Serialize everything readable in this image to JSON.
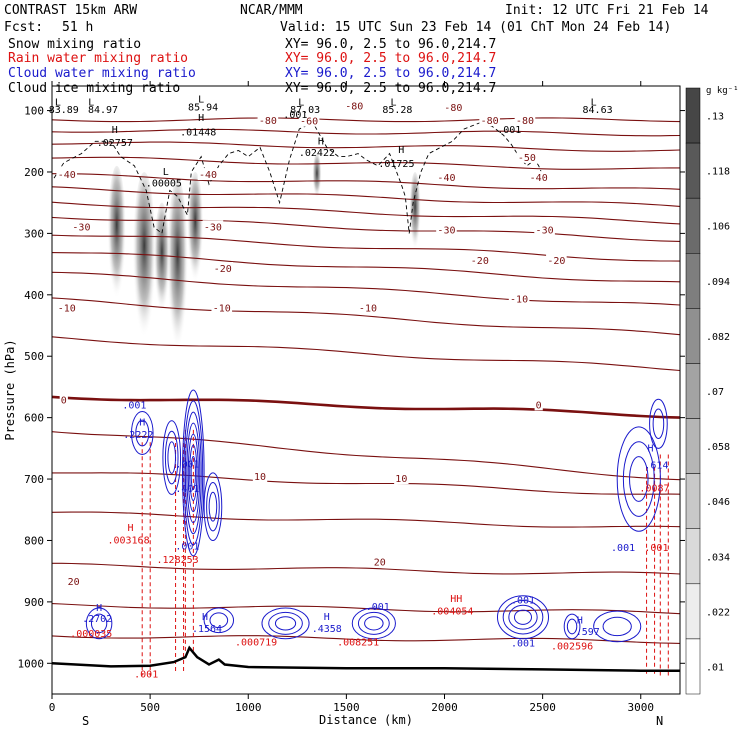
{
  "chart_data": {
    "type": "cross-section",
    "header": {
      "left_title": "CONTRAST 15km ARW",
      "center_title": "NCAR/MMM",
      "right_title": "Init: 12 UTC Fri 21 Feb 14",
      "fcst_label": "Fcst:",
      "fcst_value": "51 h",
      "valid": "Valid: 15 UTC Sun 23 Feb 14 (01 ChT Mon 24 Feb 14)"
    },
    "fields": [
      {
        "name": "Snow mixing ratio",
        "xy": "XY=  96.0,  2.5 to  96.0,214.7",
        "color": "#000000"
      },
      {
        "name": "Rain water mixing ratio",
        "xy": "XY=  96.0,  2.5 to  96.0,214.7",
        "color": "#dd1111"
      },
      {
        "name": "Cloud water mixing ratio",
        "xy": "XY=  96.0,  2.5 to  96.0,214.7",
        "color": "#1a1acc"
      },
      {
        "name": "Cloud ice mixing ratio",
        "xy": "XY=  96.0,  2.5 to  96.0,214.7",
        "color": "#000000"
      }
    ],
    "xlabel": "Distance (km)",
    "ylabel": "Pressure (hPa)",
    "xlim": [
      0,
      3200
    ],
    "ylim": [
      1050,
      60
    ],
    "xticks": [
      0,
      500,
      1000,
      1500,
      2000,
      2500,
      3000
    ],
    "xtick_labels": [
      "0",
      "500",
      "1000",
      "1500",
      "2000",
      "2500",
      "3000"
    ],
    "yticks": [
      100,
      200,
      300,
      400,
      500,
      600,
      700,
      800,
      900,
      1000
    ],
    "ytick_labels": [
      "100",
      "200",
      "300",
      "400",
      "500",
      "600",
      "700",
      "800",
      "900",
      "1000"
    ],
    "end_labels": {
      "left": "S",
      "right": "N"
    },
    "colorbar": {
      "unit": "g kg⁻¹",
      "labels": [
        ".13",
        ".118",
        ".106",
        ".094",
        ".082",
        ".07",
        ".058",
        ".046",
        ".034",
        ".022",
        ".01"
      ],
      "values": [
        0.13,
        0.118,
        0.106,
        0.094,
        0.082,
        0.07,
        0.058,
        0.046,
        0.034,
        0.022,
        0.01
      ]
    },
    "temperature_contours": [
      {
        "value": -80,
        "p0": 115,
        "slope": 0
      },
      {
        "value": -70,
        "p0": 132,
        "slope": 2
      },
      {
        "value": -60,
        "p0": 152,
        "slope": 4
      },
      {
        "value": -50,
        "p0": 177,
        "slope": 6
      },
      {
        "value": -45,
        "p0": 205,
        "slope": 8
      },
      {
        "value": -40,
        "p0": 227,
        "slope": 9
      },
      {
        "value": -35,
        "p0": 250,
        "slope": 10
      },
      {
        "value": -30,
        "p0": 272,
        "slope": 12
      },
      {
        "value": -25,
        "p0": 300,
        "slope": 14
      },
      {
        "value": -20,
        "p0": 330,
        "slope": 16
      },
      {
        "value": -15,
        "p0": 365,
        "slope": 17
      },
      {
        "value": -10,
        "p0": 408,
        "slope": 18
      },
      {
        "value": -5,
        "p0": 470,
        "slope": 16
      },
      {
        "value": 0,
        "p0": 565,
        "slope": 10
      },
      {
        "value": 5,
        "p0": 620,
        "slope": 25
      },
      {
        "value": 10,
        "p0": 688,
        "slope": 12
      },
      {
        "value": 15,
        "p0": 755,
        "slope": 8
      },
      {
        "value": 20,
        "p0": 840,
        "slope": 5
      },
      {
        "value": 25,
        "p0": 905,
        "slope": 4
      },
      {
        "value": 30,
        "p0": 955,
        "slope": 3
      }
    ],
    "contour_labels": [
      {
        "text": "-80",
        "x": 1540,
        "p": 93
      },
      {
        "text": "-80",
        "x": 2045,
        "p": 96
      },
      {
        "text": "-80",
        "x": 1100,
        "p": 117
      },
      {
        "text": "-80",
        "x": 2230,
        "p": 117
      },
      {
        "text": "-80",
        "x": 2410,
        "p": 117
      },
      {
        "text": "-60",
        "x": 1310,
        "p": 118
      },
      {
        "text": "-50",
        "x": 2420,
        "p": 177
      },
      {
        "text": "-40",
        "x": 75,
        "p": 205
      },
      {
        "text": "-40",
        "x": 795,
        "p": 205
      },
      {
        "text": "-40",
        "x": 2010,
        "p": 210
      },
      {
        "text": "-40",
        "x": 2480,
        "p": 210
      },
      {
        "text": "-30",
        "x": 150,
        "p": 290
      },
      {
        "text": "-30",
        "x": 820,
        "p": 290
      },
      {
        "text": "-30",
        "x": 2010,
        "p": 295
      },
      {
        "text": "-30",
        "x": 2510,
        "p": 295
      },
      {
        "text": "-20",
        "x": 870,
        "p": 358
      },
      {
        "text": "-20",
        "x": 2180,
        "p": 345
      },
      {
        "text": "-20",
        "x": 2570,
        "p": 345
      },
      {
        "text": "-10",
        "x": 75,
        "p": 422
      },
      {
        "text": "-10",
        "x": 865,
        "p": 422
      },
      {
        "text": "-10",
        "x": 1610,
        "p": 422
      },
      {
        "text": "-10",
        "x": 2380,
        "p": 408
      },
      {
        "text": "0",
        "x": 60,
        "p": 572
      },
      {
        "text": "0",
        "x": 2480,
        "p": 580
      },
      {
        "text": "10",
        "x": 1060,
        "p": 697
      },
      {
        "text": "10",
        "x": 1780,
        "p": 700
      },
      {
        "text": "20",
        "x": 110,
        "p": 868
      },
      {
        "text": "20",
        "x": 1670,
        "p": 836
      }
    ],
    "extrema_labels": [
      {
        "text": "L",
        "x": 30,
        "p": 87
      },
      {
        "text": "83.89",
        "x": 60,
        "p": 99
      },
      {
        "text": "L",
        "x": 200,
        "p": 87
      },
      {
        "text": "84.97",
        "x": 260,
        "p": 99
      },
      {
        "text": "L",
        "x": 760,
        "p": 82
      },
      {
        "text": "85.94",
        "x": 770,
        "p": 95
      },
      {
        "text": "L",
        "x": 1270,
        "p": 87
      },
      {
        "text": "87.03",
        "x": 1290,
        "p": 99
      },
      {
        "text": "L",
        "x": 1740,
        "p": 87
      },
      {
        "text": "85.28",
        "x": 1760,
        "p": 99
      },
      {
        "text": "L",
        "x": 2760,
        "p": 87
      },
      {
        "text": "84.63",
        "x": 2780,
        "p": 99
      },
      {
        "text": ".001",
        "x": 1240,
        "p": 107
      },
      {
        "text": ".001",
        "x": 2330,
        "p": 132
      },
      {
        "text": "H",
        "x": 760,
        "p": 112
      },
      {
        "text": ".01448",
        "x": 745,
        "p": 136
      },
      {
        "text": "H",
        "x": 320,
        "p": 132
      },
      {
        "text": ".02757",
        "x": 320,
        "p": 153
      },
      {
        "text": "H",
        "x": 1370,
        "p": 150
      },
      {
        "text": ".02422",
        "x": 1350,
        "p": 169
      },
      {
        "text": "H",
        "x": 1780,
        "p": 164
      },
      {
        "text": ".01725",
        "x": 1755,
        "p": 187
      },
      {
        "text": "L",
        "x": 580,
        "p": 200
      },
      {
        "text": ".00005",
        "x": 570,
        "p": 219
      }
    ],
    "hydrometeor_labels": [
      {
        "text": ".001",
        "x": 420,
        "p": 580,
        "color": "#1a1acc"
      },
      {
        "text": "H",
        "x": 460,
        "p": 608,
        "color": "#1a1acc"
      },
      {
        "text": ".2222",
        "x": 440,
        "p": 628,
        "color": "#1a1acc"
      },
      {
        "text": ".001",
        "x": 690,
        "p": 676,
        "color": "#1a1acc"
      },
      {
        "text": ".401",
        "x": 690,
        "p": 716,
        "color": "#1a1acc"
      },
      {
        "text": ".001",
        "x": 690,
        "p": 810,
        "color": "#1a1acc"
      },
      {
        "text": "H",
        "x": 400,
        "p": 780,
        "color": "#dd1111"
      },
      {
        "text": ".003168",
        "x": 390,
        "p": 800,
        "color": "#dd1111"
      },
      {
        "text": ".128253",
        "x": 640,
        "p": 832,
        "color": "#dd1111"
      },
      {
        "text": "H",
        "x": 3050,
        "p": 650,
        "color": "#1a1acc"
      },
      {
        "text": ".614",
        "x": 3080,
        "p": 678,
        "color": "#1a1acc"
      },
      {
        "text": ".0087",
        "x": 3070,
        "p": 715,
        "color": "#dd1111"
      },
      {
        "text": ".001",
        "x": 2910,
        "p": 812,
        "color": "#1a1acc"
      },
      {
        "text": ".001",
        "x": 3080,
        "p": 812,
        "color": "#dd1111"
      },
      {
        "text": "H",
        "x": 240,
        "p": 910,
        "color": "#1a1acc"
      },
      {
        "text": ".2702",
        "x": 230,
        "p": 928,
        "color": "#1a1acc"
      },
      {
        "text": ".000035",
        "x": 200,
        "p": 952,
        "color": "#dd1111"
      },
      {
        "text": ".001",
        "x": 480,
        "p": 1018,
        "color": "#dd1111"
      },
      {
        "text": "H",
        "x": 780,
        "p": 925,
        "color": "#1a1acc"
      },
      {
        "text": ".1564",
        "x": 790,
        "p": 944,
        "color": "#1a1acc"
      },
      {
        "text": ".000719",
        "x": 1040,
        "p": 966,
        "color": "#dd1111"
      },
      {
        "text": "H",
        "x": 1400,
        "p": 925,
        "color": "#1a1acc"
      },
      {
        "text": ".4358",
        "x": 1400,
        "p": 944,
        "color": "#1a1acc"
      },
      {
        "text": ".001",
        "x": 1660,
        "p": 908,
        "color": "#1a1acc"
      },
      {
        "text": ".008251",
        "x": 1560,
        "p": 966,
        "color": "#dd1111"
      },
      {
        "text": "HH",
        "x": 2060,
        "p": 895,
        "color": "#dd1111"
      },
      {
        "text": ".004054",
        "x": 2040,
        "p": 916,
        "color": "#dd1111"
      },
      {
        "text": ".001",
        "x": 2400,
        "p": 898,
        "color": "#1a1acc"
      },
      {
        "text": ".001",
        "x": 2400,
        "p": 968,
        "color": "#1a1acc"
      },
      {
        "text": "H",
        "x": 2690,
        "p": 930,
        "color": "#1a1acc"
      },
      {
        "text": ".597",
        "x": 2730,
        "p": 949,
        "color": "#1a1acc"
      },
      {
        "text": ".002596",
        "x": 2650,
        "p": 973,
        "color": "#dd1111"
      }
    ],
    "terrain": [
      [
        0,
        1000
      ],
      [
        300,
        1005
      ],
      [
        500,
        1004
      ],
      [
        620,
        998
      ],
      [
        680,
        990
      ],
      [
        700,
        975
      ],
      [
        740,
        990
      ],
      [
        800,
        1002
      ],
      [
        850,
        994
      ],
      [
        880,
        1002
      ],
      [
        1000,
        1006
      ],
      [
        1500,
        1008
      ],
      [
        2000,
        1008
      ],
      [
        2500,
        1010
      ],
      [
        3000,
        1012
      ],
      [
        3200,
        1012
      ]
    ],
    "snow_plumes": [
      {
        "x": 330,
        "ptop": 190,
        "pbot": 430,
        "w": 40
      },
      {
        "x": 470,
        "ptop": 200,
        "pbot": 500,
        "w": 50
      },
      {
        "x": 560,
        "ptop": 250,
        "pbot": 450,
        "w": 35
      },
      {
        "x": 640,
        "ptop": 210,
        "pbot": 520,
        "w": 45
      },
      {
        "x": 730,
        "ptop": 200,
        "pbot": 400,
        "w": 35
      },
      {
        "x": 1850,
        "ptop": 200,
        "pbot": 340,
        "w": 25
      },
      {
        "x": 1350,
        "ptop": 170,
        "pbot": 250,
        "w": 20
      }
    ],
    "cloud_ice_outline": [
      [
        10,
        210
      ],
      [
        60,
        185
      ],
      [
        150,
        170
      ],
      [
        220,
        150
      ],
      [
        300,
        150
      ],
      [
        350,
        175
      ],
      [
        420,
        190
      ],
      [
        480,
        230
      ],
      [
        520,
        290
      ],
      [
        560,
        300
      ],
      [
        600,
        230
      ],
      [
        640,
        240
      ],
      [
        690,
        270
      ],
      [
        710,
        200
      ],
      [
        760,
        175
      ],
      [
        800,
        220
      ],
      [
        850,
        190
      ],
      [
        900,
        170
      ],
      [
        950,
        165
      ],
      [
        1000,
        175
      ],
      [
        1060,
        160
      ],
      [
        1110,
        200
      ],
      [
        1160,
        250
      ],
      [
        1210,
        180
      ],
      [
        1260,
        130
      ],
      [
        1330,
        120
      ],
      [
        1400,
        160
      ],
      [
        1460,
        175
      ],
      [
        1500,
        175
      ],
      [
        1560,
        170
      ],
      [
        1600,
        180
      ],
      [
        1660,
        190
      ],
      [
        1720,
        170
      ],
      [
        1780,
        220
      ],
      [
        1800,
        240
      ],
      [
        1820,
        300
      ],
      [
        1840,
        250
      ],
      [
        1880,
        200
      ],
      [
        1920,
        170
      ],
      [
        1980,
        160
      ],
      [
        2040,
        150
      ],
      [
        2100,
        130
      ],
      [
        2180,
        120
      ],
      [
        2240,
        125
      ],
      [
        2300,
        140
      ],
      [
        2340,
        155
      ],
      [
        2380,
        175
      ],
      [
        2420,
        190
      ],
      [
        2460,
        180
      ],
      [
        2480,
        190
      ],
      [
        2500,
        205
      ]
    ],
    "rain_shafts": [
      {
        "x": 480,
        "ptop": 640,
        "pbot": 1020
      },
      {
        "x": 650,
        "ptop": 630,
        "pbot": 1015
      },
      {
        "x": 700,
        "ptop": 620,
        "pbot": 980
      },
      {
        "x": 3050,
        "ptop": 680,
        "pbot": 1020
      },
      {
        "x": 3120,
        "ptop": 660,
        "pbot": 1020
      }
    ],
    "cloud_water_cells": [
      {
        "x": 460,
        "p": 625,
        "rx": 55,
        "rp": 35,
        "n": 2
      },
      {
        "x": 610,
        "p": 665,
        "rx": 45,
        "rp": 60,
        "n": 3
      },
      {
        "x": 720,
        "p": 690,
        "rx": 55,
        "rp": 135,
        "n": 7
      },
      {
        "x": 820,
        "p": 745,
        "rx": 45,
        "rp": 55,
        "n": 3
      },
      {
        "x": 240,
        "p": 935,
        "rx": 65,
        "rp": 25,
        "n": 2
      },
      {
        "x": 850,
        "p": 930,
        "rx": 75,
        "rp": 20,
        "n": 2
      },
      {
        "x": 1190,
        "p": 935,
        "rx": 120,
        "rp": 25,
        "n": 3
      },
      {
        "x": 1640,
        "p": 935,
        "rx": 110,
        "rp": 25,
        "n": 3
      },
      {
        "x": 2400,
        "p": 925,
        "rx": 130,
        "rp": 35,
        "n": 4
      },
      {
        "x": 2650,
        "p": 940,
        "rx": 40,
        "rp": 20,
        "n": 2
      },
      {
        "x": 2880,
        "p": 940,
        "rx": 120,
        "rp": 25,
        "n": 2
      },
      {
        "x": 2990,
        "p": 700,
        "rx": 110,
        "rp": 85,
        "n": 3
      },
      {
        "x": 3090,
        "p": 610,
        "rx": 45,
        "rp": 40,
        "n": 2
      }
    ]
  }
}
